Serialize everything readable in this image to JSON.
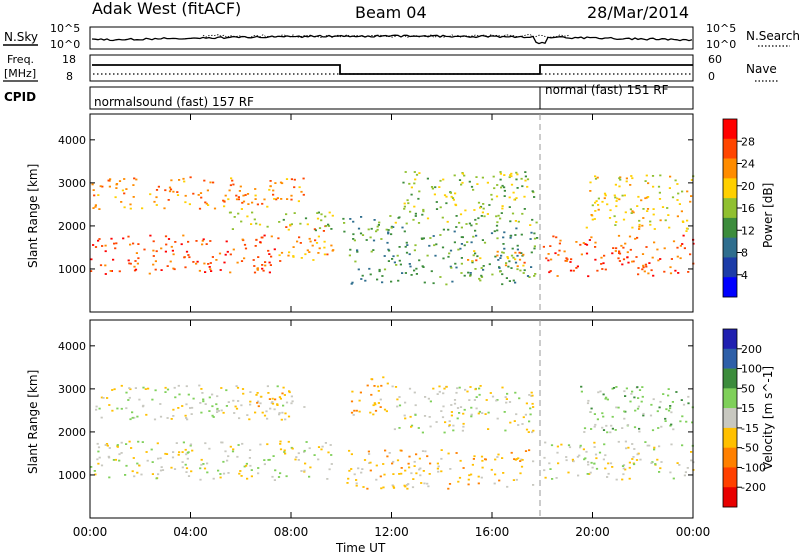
{
  "header": {
    "title": "Adak West (fitACF)",
    "beam": "Beam 04",
    "date": "28/Mar/2014"
  },
  "panels": {
    "nsky": {
      "left_label": "N.Sky",
      "right_label": "N.Search",
      "left_ticks": [
        "10^5",
        "10^0"
      ],
      "right_ticks": [
        "10^5",
        "10^0"
      ]
    },
    "freq": {
      "left_label_1": "Freq.",
      "left_label_2": "[MHz]",
      "left_ticks": [
        "18",
        "8"
      ],
      "right_label": "Nave",
      "right_ticks": [
        "60",
        "0"
      ]
    },
    "cpid": {
      "label": "CPID",
      "segments": [
        "normalsound (fast) 157 RF",
        "normal (fast) 151 RF"
      ]
    }
  },
  "power_colorbar": {
    "title": "Power [dB]",
    "ticks": [
      "28",
      "24",
      "20",
      "16",
      "12",
      "8",
      "4"
    ],
    "colors": [
      "#ff0000",
      "#ff4500",
      "#ff8c00",
      "#ffd000",
      "#90c030",
      "#3c8c3c",
      "#2f6e8e",
      "#1c3ca8",
      "#0000ff"
    ]
  },
  "velocity_colorbar": {
    "title": "Velocity [m s^-1]",
    "ticks": [
      "200",
      "100",
      "50",
      "15",
      "-15",
      "-50",
      "-100",
      "-200"
    ],
    "colors": [
      "#2020b0",
      "#2e5fa8",
      "#3c8c3c",
      "#7fd05a",
      "#c8c8c0",
      "#ffc000",
      "#ff8000",
      "#ff4000",
      "#e80000"
    ]
  },
  "axes": {
    "ylabel": "Slant Range [km]",
    "yticks": [
      "4000",
      "3000",
      "2000",
      "1000"
    ],
    "xticks": [
      "00:00",
      "04:00",
      "08:00",
      "12:00",
      "16:00",
      "20:00",
      "00:00"
    ],
    "xlabel": "Time UT"
  },
  "chart_data": [
    {
      "type": "heatmap",
      "title": "Power [dB]",
      "x": "Time UT (hours)",
      "xlim": [
        0,
        24
      ],
      "ylim": [
        0,
        4600
      ],
      "ylabel": "Slant Range [km]",
      "colorscale_range": [
        0,
        30
      ],
      "bands": [
        {
          "t0": 0.0,
          "t1": 7.5,
          "r0": 900,
          "r1": 1800,
          "level": 28
        },
        {
          "t0": 7.5,
          "t1": 9.7,
          "r0": 1200,
          "r1": 2050,
          "level": 24
        },
        {
          "t0": 0.0,
          "t1": 8.5,
          "r0": 2400,
          "r1": 3150,
          "level": 22
        },
        {
          "t0": 5.5,
          "t1": 9.7,
          "r0": 1900,
          "r1": 2350,
          "level": 16
        },
        {
          "t0": 10.0,
          "t1": 12.0,
          "r0": 1800,
          "r1": 2300,
          "level": 12
        },
        {
          "t0": 10.3,
          "t1": 17.8,
          "r0": 650,
          "r1": 2000,
          "level": 10
        },
        {
          "t0": 15.0,
          "t1": 17.3,
          "r0": 1050,
          "r1": 1450,
          "level": 24
        },
        {
          "t0": 12.0,
          "t1": 17.8,
          "r0": 2000,
          "r1": 3300,
          "level": 14
        },
        {
          "t0": 18.0,
          "t1": 24.0,
          "r0": 850,
          "r1": 1800,
          "level": 28
        },
        {
          "t0": 19.7,
          "t1": 24.0,
          "r0": 1900,
          "r1": 3200,
          "level": 20
        }
      ]
    },
    {
      "type": "heatmap",
      "title": "Velocity [m s^-1]",
      "x": "Time UT (hours)",
      "xlim": [
        0,
        24
      ],
      "ylim": [
        0,
        4600
      ],
      "ylabel": "Slant Range [km]",
      "colorscale_range": [
        -200,
        200
      ],
      "bands": [
        {
          "t0": 0.0,
          "t1": 9.7,
          "r0": 900,
          "r1": 1800,
          "level": 0
        },
        {
          "t0": 0.0,
          "t1": 8.5,
          "r0": 2300,
          "r1": 3100,
          "level": 0
        },
        {
          "t0": 6.5,
          "t1": 8.0,
          "r0": 2450,
          "r1": 3000,
          "level": -60
        },
        {
          "t0": 10.2,
          "t1": 17.6,
          "r0": 700,
          "r1": 1600,
          "level": -60
        },
        {
          "t0": 10.3,
          "t1": 12.0,
          "r0": 2400,
          "r1": 3300,
          "level": -60
        },
        {
          "t0": 12.0,
          "t1": 17.6,
          "r0": 2000,
          "r1": 3100,
          "level": 0
        },
        {
          "t0": 18.0,
          "t1": 24.0,
          "r0": 900,
          "r1": 1800,
          "level": 0
        },
        {
          "t0": 19.5,
          "t1": 24.0,
          "r0": 2000,
          "r1": 3100,
          "level": 30
        }
      ]
    }
  ]
}
